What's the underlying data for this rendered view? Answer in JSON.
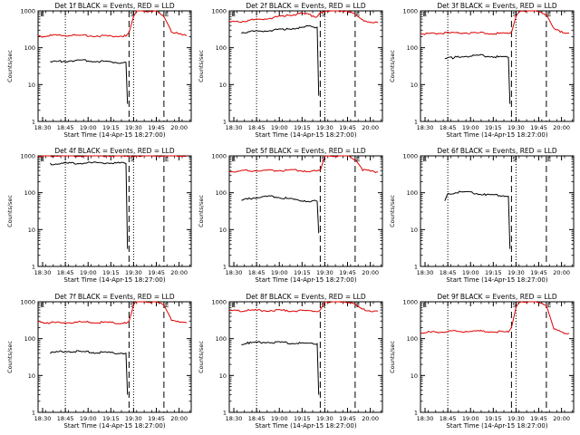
{
  "chart_data": [
    {
      "type": "line",
      "title": "Det 1f BLACK = Events, RED = LLD",
      "xlabel": "Start Time (14-Apr-15 18:27:00)",
      "ylabel": "Counts/sec",
      "yscale": "log",
      "ylim": [
        1,
        1000
      ],
      "y_ticks": [
        "1",
        "10",
        "100",
        "1000"
      ],
      "x_ticks": [
        "18:30",
        "18:45",
        "19:00",
        "19:15",
        "19:30",
        "19:45",
        "20:00"
      ],
      "flags": [
        "E",
        "S",
        "E"
      ],
      "series": [
        {
          "name": "Events",
          "color": "#000000",
          "x": [
            "18:35",
            "18:40",
            "18:45",
            "18:50",
            "18:55",
            "19:00",
            "19:05",
            "19:10",
            "19:15",
            "19:20",
            "19:25",
            "19:26"
          ],
          "y": [
            40,
            42,
            44,
            45,
            46,
            44,
            43,
            42,
            41,
            40,
            40,
            3
          ]
        },
        {
          "name": "LLD",
          "color": "#dd0000",
          "x": [
            "18:27",
            "18:35",
            "18:45",
            "18:55",
            "19:05",
            "19:15",
            "19:25",
            "19:27",
            "19:30",
            "19:32",
            "19:45",
            "19:50",
            "19:55",
            "20:00",
            "20:05"
          ],
          "y": [
            200,
            210,
            220,
            215,
            210,
            205,
            210,
            260,
            700,
            1000,
            1000,
            700,
            280,
            230,
            210
          ]
        }
      ]
    },
    {
      "type": "line",
      "title": "Det 2f BLACK = Events, RED = LLD",
      "xlabel": "Start Time (14-Apr-15 18:27:00)",
      "ylabel": "Counts/sec",
      "yscale": "log",
      "ylim": [
        1,
        1000
      ],
      "y_ticks": [
        "1",
        "10",
        "100",
        "1000"
      ],
      "x_ticks": [
        "18:30",
        "18:45",
        "19:00",
        "19:15",
        "19:30",
        "19:45",
        "20:00"
      ],
      "flags": [
        "E",
        "S",
        "E"
      ],
      "series": [
        {
          "name": "Events",
          "color": "#000000",
          "x": [
            "18:35",
            "18:45",
            "18:55",
            "19:05",
            "19:10",
            "19:15",
            "19:20",
            "19:25",
            "19:26"
          ],
          "y": [
            260,
            280,
            300,
            320,
            340,
            350,
            380,
            360,
            5
          ]
        },
        {
          "name": "LLD",
          "color": "#dd0000",
          "x": [
            "18:27",
            "18:35",
            "18:45",
            "18:55",
            "19:05",
            "19:15",
            "19:25",
            "19:27",
            "19:30",
            "19:32",
            "19:45",
            "19:50",
            "19:55",
            "20:00",
            "20:05"
          ],
          "y": [
            500,
            520,
            580,
            650,
            750,
            850,
            700,
            900,
            1000,
            1000,
            1000,
            800,
            560,
            510,
            480
          ]
        }
      ]
    },
    {
      "type": "line",
      "title": "Det 3f BLACK = Events, RED = LLD",
      "xlabel": "Start Time (14-Apr-15 18:27:00)",
      "ylabel": "Counts/sec",
      "yscale": "log",
      "ylim": [
        1,
        1000
      ],
      "y_ticks": [
        "1",
        "10",
        "100",
        "1000"
      ],
      "x_ticks": [
        "18:30",
        "18:45",
        "19:00",
        "19:15",
        "19:30",
        "19:45",
        "20:00"
      ],
      "flags": [
        "E",
        "S",
        "E"
      ],
      "series": [
        {
          "name": "Events",
          "color": "#000000",
          "x": [
            "18:43",
            "18:50",
            "18:55",
            "19:00",
            "19:05",
            "19:10",
            "19:15",
            "19:20",
            "19:25",
            "19:26"
          ],
          "y": [
            50,
            55,
            58,
            60,
            62,
            60,
            58,
            55,
            55,
            3
          ]
        },
        {
          "name": "LLD",
          "color": "#dd0000",
          "x": [
            "18:27",
            "18:35",
            "18:45",
            "18:55",
            "19:05",
            "19:15",
            "19:25",
            "19:27",
            "19:30",
            "19:32",
            "19:45",
            "19:50",
            "19:55",
            "20:00",
            "20:05"
          ],
          "y": [
            240,
            245,
            250,
            255,
            250,
            245,
            240,
            260,
            700,
            1000,
            1000,
            800,
            320,
            270,
            250
          ]
        }
      ]
    },
    {
      "type": "line",
      "title": "Det 4f BLACK = Events, RED = LLD",
      "xlabel": "Start Time (14-Apr-15 18:27:00)",
      "ylabel": "Counts/sec",
      "yscale": "log",
      "ylim": [
        1,
        1000
      ],
      "y_ticks": [
        "1",
        "10",
        "100",
        "1000"
      ],
      "x_ticks": [
        "18:30",
        "18:45",
        "19:00",
        "19:15",
        "19:30",
        "19:45",
        "20:00"
      ],
      "flags": [
        "E",
        "S",
        "E"
      ],
      "series": [
        {
          "name": "Events",
          "color": "#000000",
          "x": [
            "18:35",
            "18:45",
            "18:55",
            "19:05",
            "19:15",
            "19:20",
            "19:25",
            "19:26"
          ],
          "y": [
            600,
            620,
            640,
            650,
            640,
            630,
            620,
            3
          ]
        },
        {
          "name": "LLD",
          "color": "#dd0000",
          "x": [
            "18:27",
            "18:35",
            "18:45",
            "18:55",
            "19:05",
            "19:15",
            "19:25",
            "19:27",
            "19:30",
            "19:32",
            "19:45",
            "19:50",
            "19:55",
            "20:00",
            "20:05"
          ],
          "y": [
            1000,
            1000,
            1000,
            1000,
            1000,
            1000,
            1000,
            1000,
            1000,
            1000,
            1000,
            1000,
            1000,
            1000,
            1000
          ]
        }
      ]
    },
    {
      "type": "line",
      "title": "Det 5f BLACK = Events, RED = LLD",
      "xlabel": "Start Time (14-Apr-15 18:27:00)",
      "ylabel": "Counts/sec",
      "yscale": "log",
      "ylim": [
        1,
        1000
      ],
      "y_ticks": [
        "1",
        "10",
        "100",
        "1000"
      ],
      "x_ticks": [
        "18:30",
        "18:45",
        "19:00",
        "19:15",
        "19:30",
        "19:45",
        "20:00"
      ],
      "flags": [
        "E",
        "S",
        "E"
      ],
      "series": [
        {
          "name": "Events",
          "color": "#000000",
          "x": [
            "18:35",
            "18:40",
            "18:45",
            "18:50",
            "18:55",
            "19:00",
            "19:05",
            "19:10",
            "19:15",
            "19:20",
            "19:25",
            "19:26"
          ],
          "y": [
            60,
            70,
            75,
            78,
            80,
            75,
            70,
            65,
            62,
            60,
            58,
            8
          ]
        },
        {
          "name": "LLD",
          "color": "#dd0000",
          "x": [
            "18:27",
            "18:35",
            "18:45",
            "18:55",
            "19:05",
            "19:15",
            "19:25",
            "19:27",
            "19:30",
            "19:32",
            "19:45",
            "19:50",
            "19:55",
            "20:00",
            "20:05"
          ],
          "y": [
            380,
            390,
            400,
            400,
            410,
            400,
            380,
            400,
            1000,
            1000,
            1000,
            800,
            420,
            380,
            370
          ]
        }
      ]
    },
    {
      "type": "line",
      "title": "Det 6f BLACK = Events, RED = LLD",
      "xlabel": "Start Time (14-Apr-15 18:27:00)",
      "ylabel": "Counts/sec",
      "yscale": "log",
      "ylim": [
        1,
        1000
      ],
      "y_ticks": [
        "1",
        "10",
        "100",
        "1000"
      ],
      "x_ticks": [
        "18:30",
        "18:45",
        "19:00",
        "19:15",
        "19:30",
        "19:45",
        "20:00"
      ],
      "flags": [
        "E",
        "S",
        "E"
      ],
      "series": [
        {
          "name": "Events",
          "color": "#000000",
          "x": [
            "18:43",
            "18:45",
            "18:50",
            "18:55",
            "19:00",
            "19:05",
            "19:10",
            "19:15",
            "19:20",
            "19:25",
            "19:26"
          ],
          "y": [
            60,
            95,
            100,
            105,
            100,
            95,
            90,
            88,
            85,
            80,
            3
          ]
        }
      ]
    },
    {
      "type": "line",
      "title": "Det 7f BLACK = Events, RED = LLD",
      "xlabel": "Start Time (14-Apr-15 18:27:00)",
      "ylabel": "Counts/sec",
      "yscale": "log",
      "ylim": [
        1,
        1000
      ],
      "y_ticks": [
        "1",
        "10",
        "100",
        "1000"
      ],
      "x_ticks": [
        "18:30",
        "18:45",
        "19:00",
        "19:15",
        "19:30",
        "19:45",
        "20:00"
      ],
      "flags": [
        "E",
        "S",
        "E"
      ],
      "series": [
        {
          "name": "Events",
          "color": "#000000",
          "x": [
            "18:35",
            "18:40",
            "18:45",
            "18:50",
            "18:55",
            "19:00",
            "19:05",
            "19:10",
            "19:15",
            "19:20",
            "19:25",
            "19:26"
          ],
          "y": [
            40,
            44,
            46,
            45,
            44,
            43,
            42,
            42,
            41,
            41,
            40,
            3
          ]
        },
        {
          "name": "LLD",
          "color": "#dd0000",
          "x": [
            "18:27",
            "18:35",
            "18:45",
            "18:55",
            "19:05",
            "19:15",
            "19:25",
            "19:27",
            "19:30",
            "19:32",
            "19:45",
            "19:50",
            "19:55",
            "20:00",
            "20:05"
          ],
          "y": [
            280,
            270,
            275,
            280,
            275,
            270,
            265,
            300,
            800,
            1000,
            1000,
            800,
            330,
            280,
            270
          ]
        }
      ]
    },
    {
      "type": "line",
      "title": "Det 8f BLACK = Events, RED = LLD",
      "xlabel": "Start Time (14-Apr-15 18:27:00)",
      "ylabel": "Counts/sec",
      "yscale": "log",
      "ylim": [
        1,
        1000
      ],
      "y_ticks": [
        "1",
        "10",
        "100",
        "1000"
      ],
      "x_ticks": [
        "18:30",
        "18:45",
        "19:00",
        "19:15",
        "19:30",
        "19:45",
        "20:00"
      ],
      "flags": [
        "E",
        "S",
        "E"
      ],
      "series": [
        {
          "name": "Events",
          "color": "#000000",
          "x": [
            "18:35",
            "18:40",
            "18:45",
            "18:50",
            "18:55",
            "19:00",
            "19:05",
            "19:10",
            "19:15",
            "19:20",
            "19:25",
            "19:26"
          ],
          "y": [
            72,
            76,
            78,
            80,
            79,
            78,
            77,
            76,
            75,
            74,
            73,
            3
          ]
        },
        {
          "name": "LLD",
          "color": "#dd0000",
          "x": [
            "18:27",
            "18:35",
            "18:45",
            "18:55",
            "19:05",
            "19:15",
            "19:25",
            "19:27",
            "19:30",
            "19:32",
            "19:45",
            "19:50",
            "19:55",
            "20:00",
            "20:05"
          ],
          "y": [
            570,
            575,
            580,
            585,
            580,
            575,
            570,
            600,
            1000,
            1000,
            1000,
            850,
            620,
            580,
            560
          ]
        }
      ]
    },
    {
      "type": "line",
      "title": "Det 9f BLACK = Events, RED = LLD",
      "xlabel": "Start Time (14-Apr-15 18:27:00)",
      "ylabel": "Counts/sec",
      "yscale": "log",
      "ylim": [
        1,
        1000
      ],
      "y_ticks": [
        "1",
        "10",
        "100",
        "1000"
      ],
      "x_ticks": [
        "18:30",
        "18:45",
        "19:00",
        "19:15",
        "19:30",
        "19:45",
        "20:00"
      ],
      "flags": [
        "E",
        "S",
        "E"
      ],
      "series": [
        {
          "name": "LLD",
          "color": "#dd0000",
          "x": [
            "18:27",
            "18:35",
            "18:45",
            "18:55",
            "19:05",
            "19:15",
            "19:25",
            "19:27",
            "19:30",
            "19:32",
            "19:45",
            "19:50",
            "19:55",
            "20:00",
            "20:05"
          ],
          "y": [
            145,
            150,
            155,
            158,
            160,
            155,
            150,
            200,
            700,
            1000,
            1000,
            800,
            180,
            150,
            140
          ]
        }
      ]
    }
  ]
}
